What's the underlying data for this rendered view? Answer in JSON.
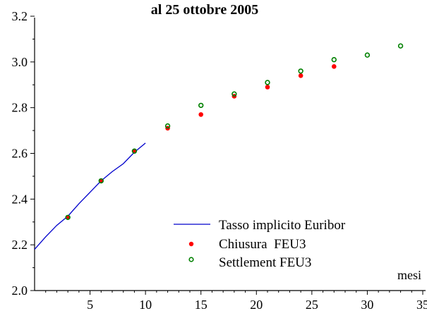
{
  "chart_data": {
    "type": "scatter",
    "title": "al 25 ottobre 2005",
    "xlabel": "mesi",
    "ylabel": "",
    "xlim": [
      0,
      35
    ],
    "ylim": [
      2.0,
      3.2
    ],
    "x_ticks": [
      5,
      10,
      15,
      20,
      25,
      30,
      35
    ],
    "y_ticks": [
      2.0,
      2.2,
      2.4,
      2.6,
      2.8,
      3.0,
      3.2
    ],
    "y_tick_labels": [
      "2.0",
      "2.2",
      "2.4",
      "2.6",
      "2.8",
      "3.0",
      "3.2"
    ],
    "grid": false,
    "legend_position": "bottom-right",
    "series": [
      {
        "name": "Tasso implicito Euribor",
        "style": "line",
        "color": "#0000cc",
        "x": [
          0,
          1,
          2,
          3,
          4,
          5,
          6,
          7,
          8,
          9,
          10
        ],
        "y": [
          2.18,
          2.235,
          2.285,
          2.325,
          2.38,
          2.43,
          2.48,
          2.52,
          2.555,
          2.605,
          2.645
        ]
      },
      {
        "name": "Chiusura  FEU3",
        "style": "filled-dot",
        "color": "#ff0000",
        "x": [
          3,
          6,
          9,
          12,
          15,
          18,
          21,
          24,
          27
        ],
        "y": [
          2.32,
          2.48,
          2.61,
          2.71,
          2.77,
          2.85,
          2.89,
          2.94,
          2.98
        ]
      },
      {
        "name": "Settlement FEU3",
        "style": "open-circle",
        "color": "#008000",
        "x": [
          3,
          6,
          9,
          12,
          15,
          18,
          21,
          24,
          27,
          30,
          33
        ],
        "y": [
          2.32,
          2.48,
          2.61,
          2.72,
          2.81,
          2.86,
          2.91,
          2.96,
          3.01,
          3.03,
          3.07
        ]
      }
    ]
  }
}
